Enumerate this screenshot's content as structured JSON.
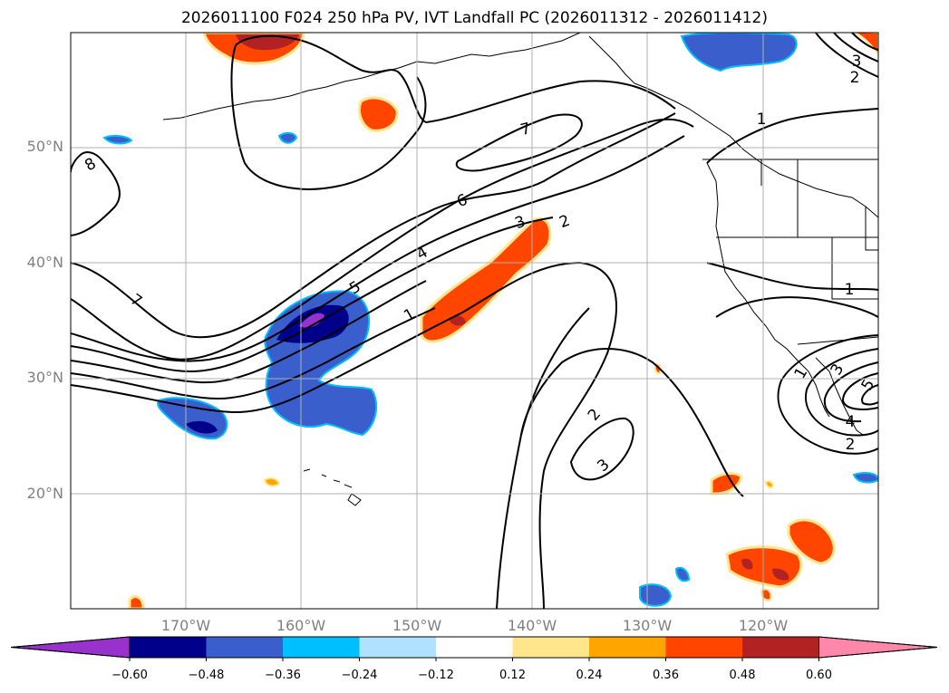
{
  "title": "2026011100 F024 250 hPa PV, IVT Landfall PC (2026011312 - 2026011412)",
  "map": {
    "projection": "PlateCarree",
    "lon_range": [
      -180,
      -110
    ],
    "lat_range": [
      10,
      60
    ],
    "lat_ticks": [
      {
        "value": 20,
        "label": "20°N"
      },
      {
        "value": 30,
        "label": "30°N"
      },
      {
        "value": 40,
        "label": "40°N"
      },
      {
        "value": 50,
        "label": "50°N"
      }
    ],
    "lon_ticks": [
      {
        "value": -170,
        "label": "170°W"
      },
      {
        "value": -160,
        "label": "160°W"
      },
      {
        "value": -150,
        "label": "150°W"
      },
      {
        "value": -140,
        "label": "140°W"
      },
      {
        "value": -130,
        "label": "130°W"
      },
      {
        "value": -120,
        "label": "120°W"
      }
    ],
    "contour_labels": [
      "8",
      "7",
      "7",
      "6",
      "5",
      "4",
      "3",
      "2",
      "1",
      "1",
      "1",
      "2",
      "3",
      "3",
      "2",
      "4",
      "5",
      "1",
      "3",
      "2"
    ]
  },
  "colorbar": {
    "ticks": [
      "−0.60",
      "−0.48",
      "−0.36",
      "−0.24",
      "−0.12",
      "0.12",
      "0.24",
      "0.36",
      "0.48",
      "0.60"
    ],
    "colors": [
      "#9932cc",
      "#00008b",
      "#3a5fcd",
      "#00bfff",
      "#b0e2ff",
      "#ffffff",
      "#ffe68c",
      "#ffa500",
      "#ff4500",
      "#b22222",
      "#ff88aa"
    ]
  }
}
